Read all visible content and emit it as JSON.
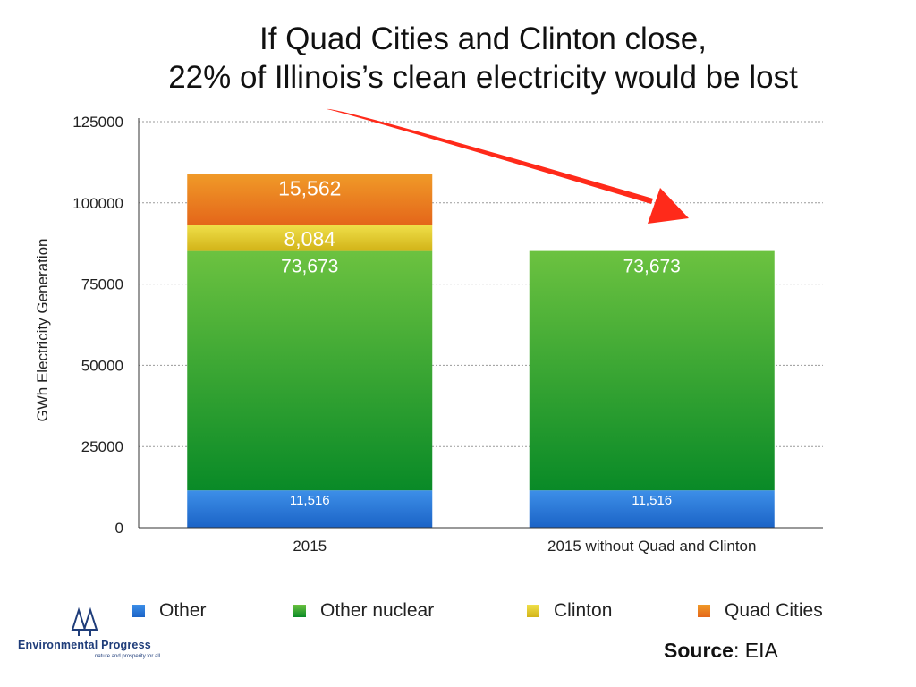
{
  "title_line1": "If Quad Cities and Clinton close,",
  "title_line2": "22% of Illinois’s clean electricity would be lost",
  "chart_data": {
    "type": "bar",
    "stacked": true,
    "categories": [
      "2015",
      "2015 without Quad and Clinton"
    ],
    "series": [
      {
        "name": "Other",
        "values": [
          11516,
          11516
        ],
        "labels": [
          "11,516",
          "11,516"
        ],
        "color_top": "#3d8fe8",
        "color_bottom": "#1b63c6"
      },
      {
        "name": "Other nuclear",
        "values": [
          73673,
          73673
        ],
        "labels": [
          "73,673",
          "73,673"
        ],
        "color_top": "#6cc240",
        "color_bottom": "#098a27"
      },
      {
        "name": "Clinton",
        "values": [
          8084,
          0
        ],
        "labels": [
          "8,084",
          ""
        ],
        "color_top": "#f0e04a",
        "color_bottom": "#d2b318"
      },
      {
        "name": "Quad Cities",
        "values": [
          15562,
          0
        ],
        "labels": [
          "15,562",
          ""
        ],
        "color_top": "#f09a28",
        "color_bottom": "#e4661a"
      }
    ],
    "ylabel": "GWh Electricity Generation",
    "xlabel": "",
    "ylim": [
      0,
      125000
    ],
    "yticks": [
      "0",
      "25000",
      "50000",
      "75000",
      "100000",
      "125000"
    ],
    "grid": true,
    "legend_position": "bottom"
  },
  "annotation_arrow_color": "#ff2a1a",
  "logo": {
    "name": "Environmental Progress",
    "tagline": "nature and prosperity for all",
    "icon": "twin-trees-icon"
  },
  "source": {
    "label": "Source",
    "value": ": EIA"
  }
}
